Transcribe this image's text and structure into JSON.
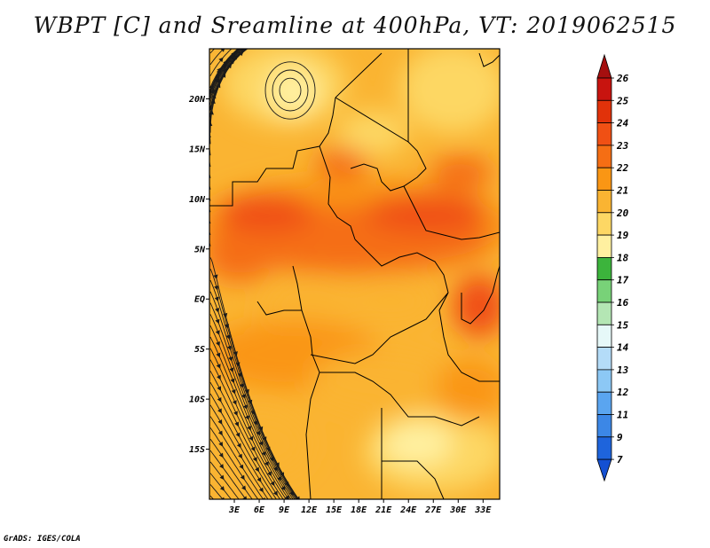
{
  "title": "WBPT [C] and Sreamline at 400hPa, VT: 2019062515",
  "credit": "GrADS: IGES/COLA",
  "map": {
    "lon_range": [
      0,
      35
    ],
    "lat_range": [
      -20,
      25
    ],
    "lat_ticks": [
      "20N",
      "15N",
      "10N",
      "5N",
      "EQ",
      "5S",
      "10S",
      "15S"
    ],
    "lat_values": [
      20,
      15,
      10,
      5,
      0,
      -5,
      -10,
      -15
    ],
    "lon_ticks": [
      "3E",
      "6E",
      "9E",
      "12E",
      "15E",
      "18E",
      "21E",
      "24E",
      "27E",
      "30E",
      "33E"
    ],
    "lon_values": [
      3,
      6,
      9,
      12,
      15,
      18,
      21,
      24,
      27,
      30,
      33
    ]
  },
  "colorbar": {
    "labels": [
      "26",
      "25",
      "24",
      "23",
      "22",
      "21",
      "20",
      "19",
      "18",
      "17",
      "16",
      "15",
      "14",
      "13",
      "12",
      "11",
      "9",
      "7"
    ],
    "colors": [
      "#a50f0f",
      "#c8140f",
      "#e1320a",
      "#f05014",
      "#f56e14",
      "#fa9614",
      "#fab432",
      "#fdd764",
      "#fff0a0",
      "#3cb43c",
      "#78d278",
      "#b4e6b4",
      "#e6f8f8",
      "#b4dcf8",
      "#8cc8f5",
      "#5aa5f0",
      "#3c87e6",
      "#1e64dc",
      "#1450d2"
    ]
  }
}
